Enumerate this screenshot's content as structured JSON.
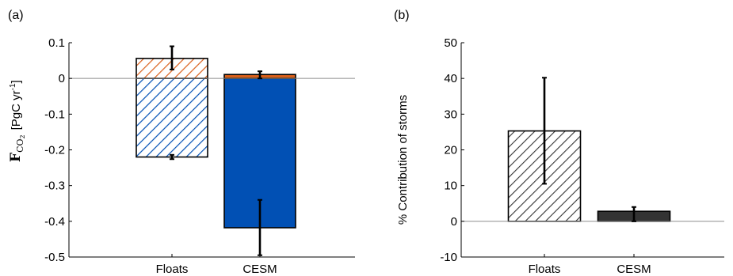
{
  "chart_data": [
    {
      "panel_label": "(a)",
      "type": "bar",
      "stacked_sign": true,
      "categories": [
        "Floats",
        "CESM"
      ],
      "ylim": [
        -0.5,
        0.1
      ],
      "yticks": [
        "0.1",
        "0",
        "-0.1",
        "-0.2",
        "-0.3",
        "-0.4",
        "-0.5"
      ],
      "ytick_values": [
        0.1,
        0,
        -0.1,
        -0.2,
        -0.3,
        -0.4,
        -0.5
      ],
      "ylabel_main": "F",
      "ylabel_sub": "CO",
      "ylabel_subsub": "2",
      "ylabel_units": "[PgC yr",
      "ylabel_sup": "-1",
      "ylabel_close": "]",
      "grid": false,
      "zero_line": true,
      "series": [
        {
          "color": "#d95f1a",
          "values": [
            0.056,
            0.011
          ],
          "hatched": [
            true,
            false
          ],
          "error_low": [
            0.025,
            0.0
          ],
          "error_high": [
            0.09,
            0.02
          ]
        },
        {
          "color": "#0150b4",
          "values": [
            -0.22,
            -0.418
          ],
          "hatched": [
            true,
            false
          ],
          "error_low": [
            -0.226,
            -0.495
          ],
          "error_high": [
            -0.214,
            -0.34
          ]
        }
      ]
    },
    {
      "panel_label": "(b)",
      "type": "bar",
      "categories": [
        "Floats",
        "CESM"
      ],
      "ylim": [
        -10,
        50
      ],
      "yticks": [
        "50",
        "40",
        "30",
        "20",
        "10",
        "0",
        "-10"
      ],
      "ytick_values": [
        50,
        40,
        30,
        20,
        10,
        0,
        -10
      ],
      "ylabel": "% Contribution of storms",
      "grid": false,
      "zero_line": true,
      "series": [
        {
          "color": "#333333",
          "values": [
            25.3,
            2.8
          ],
          "hatched": [
            true,
            false
          ],
          "error_low": [
            10.5,
            0.0
          ],
          "error_high": [
            40.2,
            4.0
          ]
        }
      ]
    }
  ]
}
